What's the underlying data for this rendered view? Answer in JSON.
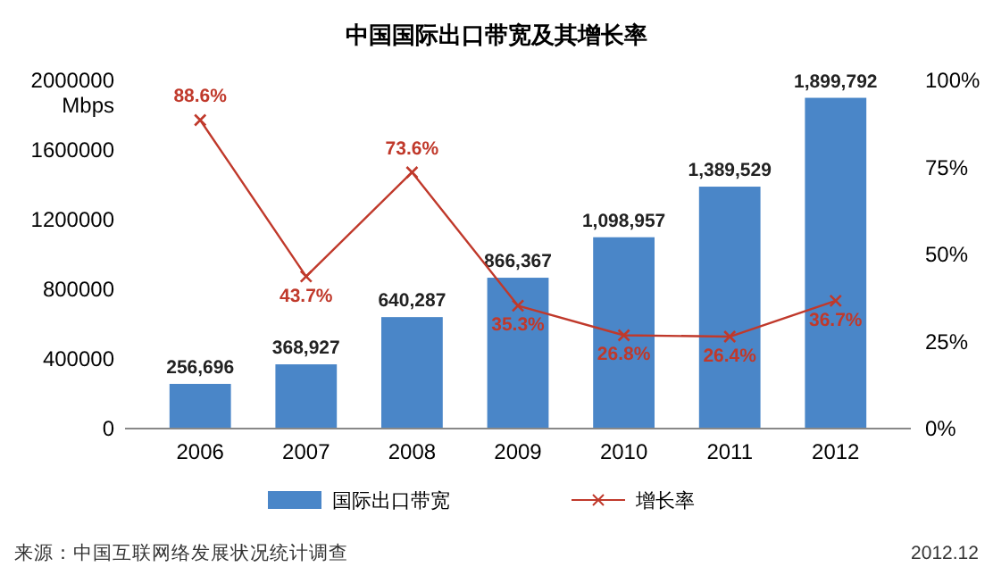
{
  "chart_data": {
    "type": "bar",
    "title": "中国国际出口带宽及其增长率",
    "ylabel": "Mbps",
    "categories": [
      "2006",
      "2007",
      "2008",
      "2009",
      "2010",
      "2011",
      "2012"
    ],
    "series": [
      {
        "name": "国际出口带宽",
        "color": "#4a86c8",
        "values": [
          256696,
          368927,
          640287,
          866367,
          1098957,
          1389529,
          1899792
        ],
        "value_labels": [
          "256,696",
          "368,927",
          "640,287",
          "866,367",
          "1,098,957",
          "1,389,529",
          "1,899,792"
        ]
      },
      {
        "name": "增长率",
        "type": "line",
        "axis": "y2",
        "color": "#c0392b",
        "marker": "cross",
        "values": [
          88.6,
          43.7,
          73.6,
          35.3,
          26.8,
          26.4,
          36.7
        ],
        "value_labels": [
          "88.6%",
          "43.7%",
          "73.6%",
          "35.3%",
          "26.8%",
          "26.4%",
          "36.7%"
        ]
      }
    ],
    "ylim": [
      0,
      2000000
    ],
    "yticks": [
      0,
      400000,
      800000,
      1200000,
      1600000,
      2000000
    ],
    "y2lim": [
      0,
      100
    ],
    "y2ticks": [
      {
        "value": 0,
        "label": "0%"
      },
      {
        "value": 25,
        "label": "25%"
      },
      {
        "value": 50,
        "label": "50%"
      },
      {
        "value": 75,
        "label": "75%"
      },
      {
        "value": 100,
        "label": "100%"
      }
    ],
    "legend": "bottom",
    "annotations": [
      "来源：中国互联网络发展状况统计调查",
      "2012.12"
    ]
  }
}
